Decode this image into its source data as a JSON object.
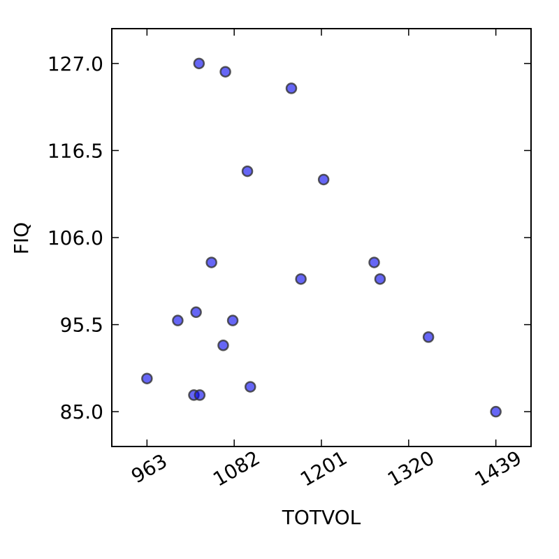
{
  "chart_data": {
    "type": "scatter",
    "title": "",
    "xlabel": "TOTVOL",
    "ylabel": "FIQ",
    "xlim": [
      915,
      1487
    ],
    "ylim": [
      80.8,
      131.2
    ],
    "x_ticks": [
      963,
      1082,
      1201,
      1320,
      1439
    ],
    "x_tick_labels": [
      "963",
      "1082",
      "1201",
      "1320",
      "1439"
    ],
    "y_ticks": [
      85.0,
      95.5,
      106.0,
      116.5,
      127.0
    ],
    "y_tick_labels": [
      "85.0",
      "95.5",
      "106.0",
      "116.5",
      "127.0"
    ],
    "grid": false,
    "legend": "none",
    "marker_color": "#0000ee",
    "marker_edge_color": "#333333",
    "points": [
      {
        "x": 1034,
        "y": 127.0
      },
      {
        "x": 1070,
        "y": 126.0
      },
      {
        "x": 1160,
        "y": 124.0
      },
      {
        "x": 1100,
        "y": 114.0
      },
      {
        "x": 1204,
        "y": 113.0
      },
      {
        "x": 1051,
        "y": 103.0
      },
      {
        "x": 1273,
        "y": 103.0
      },
      {
        "x": 1173,
        "y": 101.0
      },
      {
        "x": 1281,
        "y": 101.0
      },
      {
        "x": 1030,
        "y": 97.0
      },
      {
        "x": 1005,
        "y": 96.0
      },
      {
        "x": 1080,
        "y": 96.0
      },
      {
        "x": 1347,
        "y": 94.0
      },
      {
        "x": 1067,
        "y": 93.0
      },
      {
        "x": 963,
        "y": 89.0
      },
      {
        "x": 1104,
        "y": 88.0
      },
      {
        "x": 1027,
        "y": 87.0
      },
      {
        "x": 1035,
        "y": 87.0
      },
      {
        "x": 1439,
        "y": 85.0
      }
    ]
  }
}
